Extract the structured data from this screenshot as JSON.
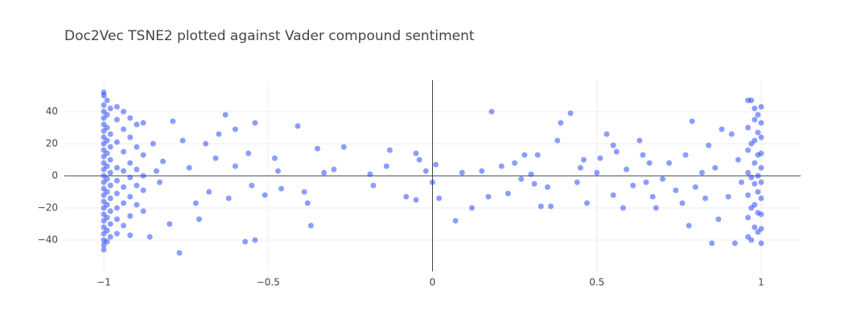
{
  "chart_data": {
    "type": "scatter",
    "title": "Doc2Vec TSNE2 plotted against Vader compound sentiment",
    "color": "#1a3cff",
    "grid": true,
    "xlim": [
      -1.12,
      1.12
    ],
    "ylim": [
      -59.5,
      59.5
    ],
    "xticks": [
      {
        "value": -1,
        "label": "−1"
      },
      {
        "value": -0.5,
        "label": "−0.5"
      },
      0,
      0.5,
      1
    ],
    "yticks": [
      {
        "value": -40,
        "label": "−40"
      },
      {
        "value": -20,
        "label": "−20"
      },
      0,
      20,
      40
    ],
    "x": [
      -1,
      -1,
      -1,
      -1,
      -1,
      -1,
      -1,
      -1,
      -1,
      -1,
      -1,
      -1,
      -1,
      -1,
      -1,
      -1,
      -1,
      -1,
      -1,
      -1,
      -1,
      -1,
      -1,
      -1,
      -1,
      -1,
      -0.99,
      -0.99,
      -0.99,
      -0.99,
      -0.99,
      -0.99,
      -0.99,
      -0.99,
      -0.99,
      -0.99,
      -0.99,
      -0.99,
      -0.98,
      -0.98,
      -0.98,
      -0.98,
      -0.98,
      -0.98,
      -0.98,
      -0.98,
      -0.98,
      -0.98,
      -0.96,
      -0.96,
      -0.96,
      -0.96,
      -0.96,
      -0.96,
      -0.96,
      -0.96,
      -0.96,
      -0.94,
      -0.94,
      -0.94,
      -0.94,
      -0.94,
      -0.94,
      -0.94,
      -0.92,
      -0.92,
      -0.92,
      -0.92,
      -0.92,
      -0.92,
      -0.92,
      -0.9,
      -0.9,
      -0.9,
      -0.9,
      -0.9,
      -0.88,
      -0.88,
      -0.88,
      -0.88,
      -0.88,
      -0.86,
      -0.85,
      -0.84,
      -0.83,
      -0.82,
      -0.8,
      -0.79,
      -0.77,
      -0.76,
      -0.74,
      -0.72,
      -0.71,
      -0.69,
      -0.68,
      -0.66,
      -0.65,
      -0.63,
      -0.62,
      -0.6,
      -0.6,
      -0.57,
      -0.56,
      -0.55,
      -0.54,
      -0.54,
      -0.51,
      -0.48,
      -0.47,
      -0.46,
      -0.41,
      -0.39,
      -0.38,
      -0.37,
      -0.35,
      -0.33,
      -0.3,
      -0.27,
      -0.19,
      -0.18,
      -0.14,
      -0.13,
      -0.08,
      -0.05,
      -0.05,
      -0.04,
      -0.02,
      0,
      0.01,
      0.02,
      0.07,
      0.09,
      0.12,
      0.15,
      0.17,
      0.18,
      0.21,
      0.23,
      0.25,
      0.27,
      0.28,
      0.3,
      0.31,
      0.32,
      0.33,
      0.35,
      0.36,
      0.38,
      0.39,
      0.42,
      0.44,
      0.45,
      0.46,
      0.47,
      0.5,
      0.51,
      0.53,
      0.55,
      0.55,
      0.56,
      0.58,
      0.59,
      0.61,
      0.63,
      0.64,
      0.65,
      0.66,
      0.67,
      0.68,
      0.7,
      0.72,
      0.74,
      0.76,
      0.77,
      0.78,
      0.79,
      0.8,
      0.82,
      0.83,
      0.84,
      0.85,
      0.86,
      0.87,
      0.88,
      0.9,
      0.91,
      0.92,
      0.93,
      0.94,
      0.96,
      0.96,
      0.96,
      0.96,
      0.96,
      0.96,
      0.96,
      0.98,
      0.98,
      0.98,
      0.98,
      0.98,
      0.98,
      0.98,
      0.99,
      0.99,
      0.99,
      0.99,
      0.99,
      0.99,
      0.99,
      1,
      1,
      1,
      1,
      1,
      1,
      1,
      1,
      1,
      1,
      0.97,
      0.97,
      0.97,
      0.97,
      0.97
    ],
    "values": [
      52,
      50,
      44,
      40,
      36,
      32,
      28,
      24,
      20,
      16,
      12,
      8,
      4,
      0,
      -4,
      -8,
      -12,
      -16,
      -20,
      -24,
      -28,
      -32,
      -36,
      -40,
      -43,
      -46,
      47,
      38,
      30,
      22,
      14,
      6,
      -2,
      -10,
      -18,
      -26,
      -34,
      -41,
      42,
      26,
      18,
      10,
      2,
      -6,
      -14,
      -22,
      -30,
      -38,
      43,
      35,
      21,
      5,
      -3,
      -11,
      -20,
      -27,
      -36,
      40,
      29,
      15,
      3,
      -7,
      -17,
      -31,
      36,
      24,
      8,
      -1,
      -13,
      -25,
      -37,
      32,
      18,
      4,
      -6,
      -18,
      33,
      13,
      0,
      -9,
      -22,
      -38,
      20,
      3,
      -4,
      9,
      -30,
      34,
      -48,
      22,
      5,
      -17,
      -27,
      20,
      -10,
      11,
      26,
      38,
      -14,
      29,
      6,
      -41,
      14,
      -6,
      -40,
      33,
      -12,
      11,
      3,
      -8,
      31,
      -10,
      -17,
      -31,
      17,
      2,
      4,
      18,
      1,
      -6,
      6,
      16,
      -13,
      -15,
      14,
      10,
      3,
      -4,
      7,
      -14,
      -28,
      2,
      -20,
      3,
      -13,
      40,
      6,
      -11,
      8,
      -2,
      13,
      1,
      -5,
      13,
      -19,
      -7,
      -19,
      22,
      33,
      39,
      -4,
      5,
      10,
      -17,
      2,
      11,
      26,
      -12,
      19,
      15,
      -20,
      4,
      -6,
      22,
      13,
      -4,
      8,
      -13,
      -20,
      -2,
      8,
      -9,
      -17,
      13,
      -31,
      34,
      -7,
      2,
      -14,
      19,
      -42,
      5,
      -27,
      29,
      -13,
      26,
      -42,
      10,
      -4,
      47,
      30,
      16,
      2,
      -12,
      -26,
      -38,
      42,
      35,
      22,
      8,
      -5,
      -18,
      -32,
      38,
      27,
      13,
      0,
      -10,
      -23,
      -35,
      43,
      33,
      24,
      14,
      5,
      -4,
      -14,
      -24,
      -33,
      -42,
      47,
      20,
      -1,
      -20,
      -40
    ]
  }
}
